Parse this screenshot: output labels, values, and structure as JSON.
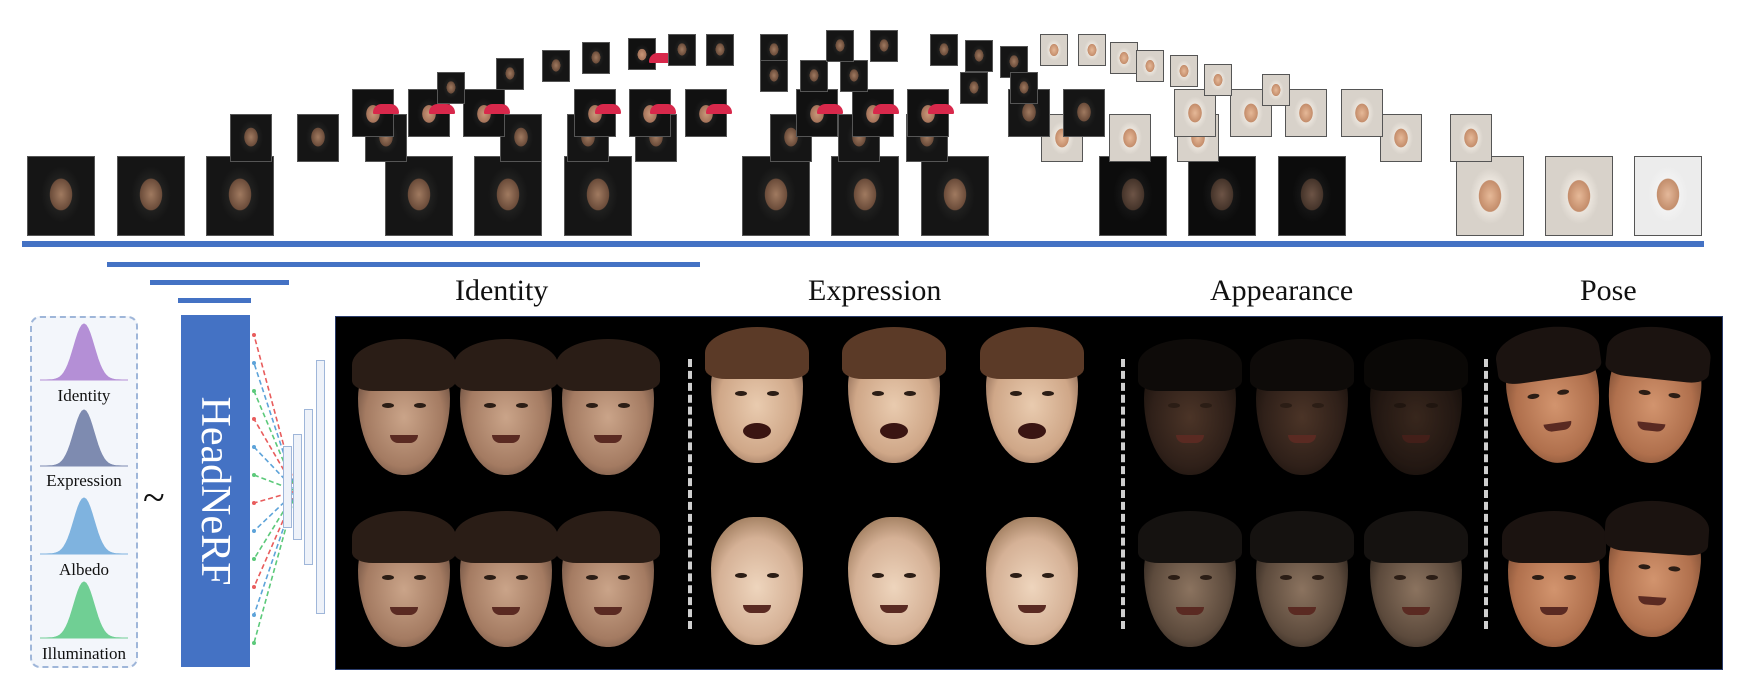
{
  "distributions": [
    {
      "label": "Identity",
      "color": "#b48fd6"
    },
    {
      "label": "Expression",
      "color": "#7e8bb0"
    },
    {
      "label": "Albedo",
      "color": "#7fb3df"
    },
    {
      "label": "Illumination",
      "color": "#70cf94"
    }
  ],
  "tilde": "~",
  "model_name": "HeadNeRF",
  "sections": [
    {
      "title": "Identity"
    },
    {
      "title": "Expression"
    },
    {
      "title": "Appearance"
    },
    {
      "title": "Pose"
    }
  ],
  "colors": {
    "bar": "#4472c4",
    "panel_bg": "#000000"
  },
  "arrow_colors": [
    "#e85c5c",
    "#5da3d9",
    "#5cc97a"
  ]
}
